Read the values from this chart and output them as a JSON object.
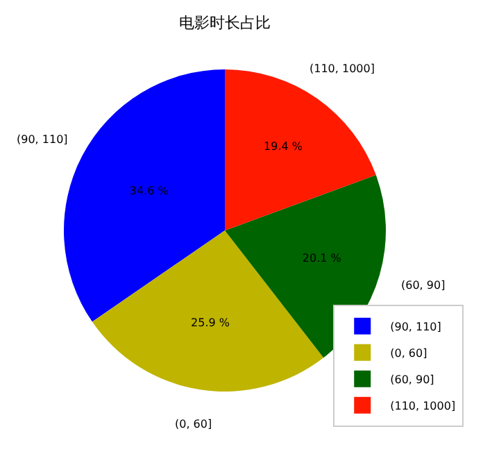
{
  "chart_data": {
    "type": "pie",
    "title": "电影时长占比",
    "categories": [
      "(90, 110]",
      "(0, 60]",
      "(60, 90]",
      "(110, 1000]"
    ],
    "values": [
      34.6,
      25.9,
      20.1,
      19.4
    ],
    "colors": [
      "#0000ff",
      "#bfb400",
      "#006400",
      "#ff1a00"
    ],
    "value_labels": [
      "34.6 %",
      "25.9 %",
      "20.1 %",
      "19.4 %"
    ],
    "legend": "bottom right"
  }
}
